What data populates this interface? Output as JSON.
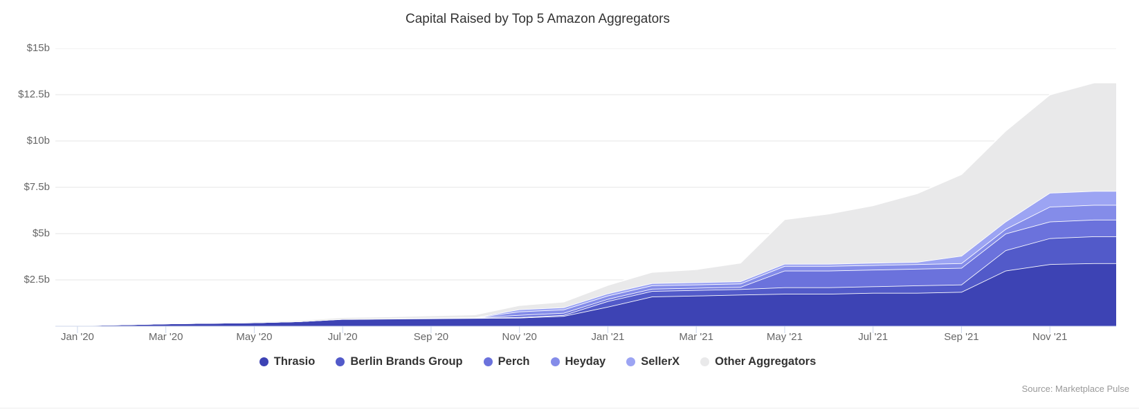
{
  "chart_data": {
    "type": "area",
    "stacked": true,
    "title": "Capital Raised by Top 5 Amazon Aggregators",
    "source": "Source: Marketplace Pulse",
    "ylabel": "",
    "xlabel": "",
    "ylim": [
      0,
      15
    ],
    "grid": true,
    "legend_position": "bottom-center",
    "yticks": [
      "$2.5b",
      "$5b",
      "$7.5b",
      "$10b",
      "$12.5b",
      "$15b"
    ],
    "xticks": [
      "Jan '20",
      "Mar '20",
      "May '20",
      "Jul '20",
      "Sep '20",
      "Nov '20",
      "Jan '21",
      "Mar '21",
      "May '21",
      "Jul '21",
      "Sep '21",
      "Nov '21"
    ],
    "months": [
      "Jan '20",
      "Feb '20",
      "Mar '20",
      "Apr '20",
      "May '20",
      "Jun '20",
      "Jul '20",
      "Aug '20",
      "Sep '20",
      "Oct '20",
      "Nov '20",
      "Dec '20",
      "Jan '21",
      "Feb '21",
      "Mar '21",
      "Apr '21",
      "May '21",
      "Jun '21",
      "Jul '21",
      "Aug '21",
      "Sep '21",
      "Oct '21",
      "Nov '21",
      "Dec '21"
    ],
    "units": "billions USD, cumulative",
    "series": [
      {
        "name": "Thrasio",
        "color": "#3d43b4",
        "values": [
          0.05,
          0.09,
          0.14,
          0.17,
          0.2,
          0.26,
          0.38,
          0.4,
          0.42,
          0.44,
          0.46,
          0.55,
          1.05,
          1.6,
          1.65,
          1.7,
          1.75,
          1.75,
          1.8,
          1.8,
          1.85,
          3.0,
          3.35,
          3.4
        ]
      },
      {
        "name": "Berlin Brands Group",
        "color": "#525ac9",
        "values": [
          0,
          0,
          0,
          0,
          0,
          0,
          0.01,
          0.01,
          0.02,
          0.02,
          0.03,
          0.05,
          0.3,
          0.3,
          0.3,
          0.3,
          0.35,
          0.35,
          0.35,
          0.4,
          0.4,
          1.1,
          1.4,
          1.45
        ]
      },
      {
        "name": "Perch",
        "color": "#6b72dc",
        "values": [
          0,
          0,
          0,
          0,
          0,
          0,
          0,
          0,
          0.01,
          0.01,
          0.12,
          0.12,
          0.12,
          0.12,
          0.12,
          0.12,
          0.9,
          0.9,
          0.9,
          0.9,
          0.9,
          0.9,
          0.9,
          0.9
        ]
      },
      {
        "name": "Heyday",
        "color": "#848ce9",
        "values": [
          0,
          0,
          0,
          0,
          0,
          0,
          0,
          0,
          0,
          0,
          0.18,
          0.18,
          0.18,
          0.18,
          0.18,
          0.18,
          0.25,
          0.25,
          0.25,
          0.25,
          0.25,
          0.25,
          0.8,
          0.8
        ]
      },
      {
        "name": "SellerX",
        "color": "#9ca4f3",
        "values": [
          0,
          0,
          0,
          0,
          0,
          0,
          0,
          0,
          0,
          0,
          0.12,
          0.12,
          0.12,
          0.12,
          0.12,
          0.12,
          0.12,
          0.12,
          0.12,
          0.12,
          0.4,
          0.4,
          0.75,
          0.75
        ]
      },
      {
        "name": "Other Aggregators",
        "color": "#e9e9ea",
        "values": [
          0.0,
          0.01,
          0.02,
          0.03,
          0.05,
          0.06,
          0.09,
          0.11,
          0.13,
          0.16,
          0.22,
          0.3,
          0.45,
          0.6,
          0.7,
          1.0,
          2.4,
          2.7,
          3.1,
          3.7,
          4.4,
          4.9,
          5.3,
          5.85
        ]
      }
    ],
    "axis_colors": {
      "grid_line": "#e6e6e6",
      "axis_line": "#ccd6eb",
      "tick_mark": "#ccd6eb",
      "label_color": "#666666",
      "title_color": "#333333",
      "legend_text_color": "#333333",
      "source_color": "#999999"
    }
  }
}
